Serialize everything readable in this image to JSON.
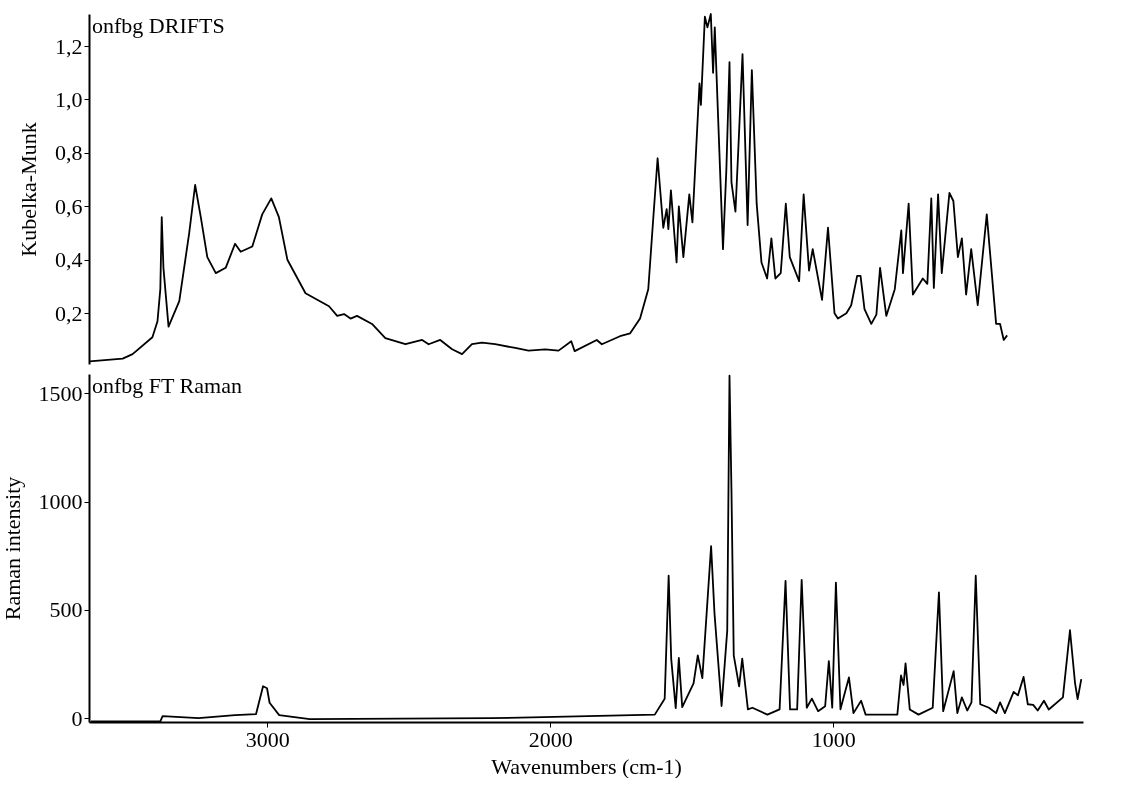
{
  "chart_data": [
    {
      "type": "line",
      "title": "onfbg DRIFTS",
      "ylabel": "Kubelka-Munk",
      "color": "#000000",
      "xlim": [
        3630,
        118
      ],
      "ylim": [
        0.01,
        1.32
      ],
      "xticks": [
        3000,
        2000,
        1000
      ],
      "yticks": [
        {
          "value": 0.2,
          "label": "0,2"
        },
        {
          "value": 0.4,
          "label": "0,4"
        },
        {
          "value": 0.6,
          "label": "0,6"
        },
        {
          "value": 0.8,
          "label": "0,8"
        },
        {
          "value": 1.0,
          "label": "1,0"
        },
        {
          "value": 1.2,
          "label": "1,2"
        }
      ],
      "tick_labels": "y",
      "grid": false,
      "x": [
        3628,
        3511,
        3476,
        3406,
        3388,
        3378,
        3373,
        3367,
        3349,
        3311,
        3276,
        3255,
        3235,
        3212,
        3182,
        3147,
        3114,
        3094,
        3053,
        3018,
        2986,
        2959,
        2929,
        2865,
        2782,
        2753,
        2729,
        2706,
        2683,
        2630,
        2583,
        2512,
        2453,
        2430,
        2389,
        2347,
        2312,
        2277,
        2242,
        2195,
        2124,
        2077,
        2018,
        1971,
        1926,
        1914,
        1836,
        1818,
        1754,
        1718,
        1683,
        1654,
        1636,
        1621,
        1601,
        1589,
        1583,
        1574,
        1554,
        1546,
        1530,
        1509,
        1498,
        1473,
        1468,
        1454,
        1445,
        1433,
        1425,
        1419,
        1390,
        1378,
        1367,
        1360,
        1346,
        1336,
        1321,
        1303,
        1288,
        1271,
        1254,
        1234,
        1219,
        1205,
        1186,
        1168,
        1154,
        1121,
        1105,
        1086,
        1073,
        1040,
        1019,
        996,
        984,
        954,
        937,
        916,
        904,
        890,
        866,
        848,
        835,
        813,
        783,
        760,
        754,
        734,
        719,
        684,
        668,
        654,
        645,
        630,
        617,
        590,
        576,
        560,
        546,
        531,
        513,
        490,
        458,
        425,
        411,
        398,
        386
      ],
      "values": [
        0.02,
        0.03,
        0.047,
        0.11,
        0.17,
        0.29,
        0.56,
        0.37,
        0.15,
        0.245,
        0.5,
        0.68,
        0.56,
        0.41,
        0.35,
        0.37,
        0.46,
        0.43,
        0.45,
        0.57,
        0.63,
        0.56,
        0.4,
        0.275,
        0.226,
        0.19,
        0.197,
        0.18,
        0.19,
        0.16,
        0.107,
        0.084,
        0.1,
        0.084,
        0.1,
        0.065,
        0.047,
        0.084,
        0.09,
        0.084,
        0.07,
        0.06,
        0.065,
        0.06,
        0.095,
        0.058,
        0.1,
        0.084,
        0.114,
        0.125,
        0.18,
        0.29,
        0.56,
        0.78,
        0.52,
        0.59,
        0.515,
        0.66,
        0.39,
        0.6,
        0.41,
        0.645,
        0.54,
        1.06,
        0.98,
        1.31,
        1.27,
        1.32,
        1.1,
        1.27,
        0.44,
        0.74,
        1.14,
        0.69,
        0.58,
        0.81,
        1.17,
        0.53,
        1.11,
        0.61,
        0.39,
        0.33,
        0.48,
        0.33,
        0.35,
        0.61,
        0.41,
        0.32,
        0.645,
        0.36,
        0.44,
        0.25,
        0.52,
        0.2,
        0.18,
        0.2,
        0.23,
        0.34,
        0.34,
        0.215,
        0.16,
        0.195,
        0.37,
        0.19,
        0.29,
        0.51,
        0.35,
        0.61,
        0.27,
        0.33,
        0.31,
        0.63,
        0.295,
        0.645,
        0.35,
        0.65,
        0.62,
        0.41,
        0.48,
        0.27,
        0.44,
        0.23,
        0.57,
        0.16,
        0.16,
        0.1,
        0.117
      ]
    },
    {
      "type": "line",
      "title": "onfbg FT Raman",
      "xlabel": "Wavenumbers (cm-1)",
      "ylabel": "Raman intensity",
      "color": "#000000",
      "xlim": [
        3630,
        118
      ],
      "ylim": [
        -18,
        1590
      ],
      "xticks": [
        3000,
        2000,
        1000
      ],
      "yticks": [
        0,
        500,
        1000,
        1500
      ],
      "grid": false,
      "x": [
        3623,
        3378,
        3370,
        3243,
        3114,
        3040,
        3015,
        3001,
        2992,
        2958,
        2850,
        2212,
        2065,
        1631,
        1596,
        1582,
        1573,
        1557,
        1546,
        1534,
        1494,
        1479,
        1463,
        1432,
        1420,
        1395,
        1375,
        1367,
        1360,
        1352,
        1333,
        1322,
        1302,
        1286,
        1233,
        1190,
        1169,
        1153,
        1128,
        1112,
        1094,
        1076,
        1054,
        1029,
        1016,
        1004,
        991,
        975,
        945,
        929,
        902,
        886,
        774,
        761,
        752,
        745,
        730,
        699,
        649,
        627,
        612,
        575,
        562,
        546,
        527,
        512,
        497,
        481,
        450,
        425,
        411,
        394,
        363,
        348,
        328,
        313,
        294,
        278,
        256,
        239,
        189,
        164,
        146,
        137,
        124
      ],
      "values": [
        -15,
        -15,
        9,
        0,
        14,
        18,
        147,
        138,
        71,
        14,
        -5,
        0,
        3,
        16,
        89,
        658,
        275,
        46,
        278,
        51,
        160,
        290,
        185,
        794,
        484,
        56,
        404,
        1582,
        1050,
        290,
        147,
        275,
        40,
        48,
        16,
        40,
        634,
        40,
        40,
        639,
        48,
        90,
        32,
        55,
        263,
        48,
        626,
        41,
        188,
        23,
        80,
        16,
        16,
        197,
        153,
        253,
        40,
        16,
        48,
        581,
        32,
        217,
        23,
        96,
        35,
        73,
        658,
        64,
        48,
        23,
        73,
        23,
        121,
        105,
        190,
        64,
        61,
        35,
        80,
        40,
        96,
        406,
        160,
        88,
        180
      ]
    }
  ]
}
